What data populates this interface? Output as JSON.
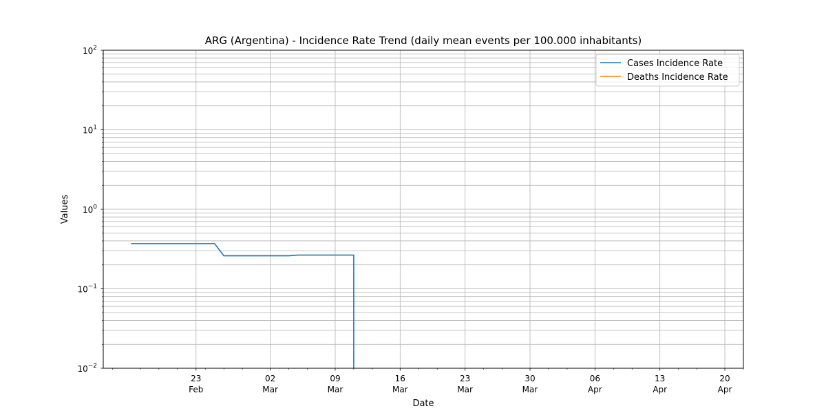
{
  "chart_data": {
    "type": "line",
    "title": "ARG (Argentina) - Incidence Rate Trend (daily mean events per 100.000 inhabitants)",
    "xlabel": "Date",
    "ylabel": "Values",
    "yscale": "log",
    "ylim": [
      0.01,
      100
    ],
    "xlim": [
      "2020-02-13",
      "2020-04-22"
    ],
    "grid": "major and minor",
    "legend_position": "top-right",
    "x_ticks": [
      {
        "date": "2020-02-23",
        "day": "23",
        "month": "Feb"
      },
      {
        "date": "2020-03-02",
        "day": "02",
        "month": "Mar"
      },
      {
        "date": "2020-03-09",
        "day": "09",
        "month": "Mar"
      },
      {
        "date": "2020-03-16",
        "day": "16",
        "month": "Mar"
      },
      {
        "date": "2020-03-23",
        "day": "23",
        "month": "Mar"
      },
      {
        "date": "2020-03-30",
        "day": "30",
        "month": "Mar"
      },
      {
        "date": "2020-04-06",
        "day": "06",
        "month": "Apr"
      },
      {
        "date": "2020-04-13",
        "day": "13",
        "month": "Apr"
      },
      {
        "date": "2020-04-20",
        "day": "20",
        "month": "Apr"
      }
    ],
    "y_ticks": [
      {
        "value": 0.01,
        "base": "10",
        "exp": "−2"
      },
      {
        "value": 0.1,
        "base": "10",
        "exp": "−1"
      },
      {
        "value": 1,
        "base": "10",
        "exp": "0"
      },
      {
        "value": 10,
        "base": "10",
        "exp": "1"
      },
      {
        "value": 100,
        "base": "10",
        "exp": "2"
      }
    ],
    "series": [
      {
        "name": "Cases Incidence Rate",
        "color": "#1f77b4",
        "points": [
          {
            "x": "2020-02-16",
            "y": 0.37
          },
          {
            "x": "2020-02-22",
            "y": 0.37
          },
          {
            "x": "2020-02-25",
            "y": 0.37
          },
          {
            "x": "2020-02-26",
            "y": 0.26
          },
          {
            "x": "2020-03-01",
            "y": 0.26
          },
          {
            "x": "2020-03-04",
            "y": 0.26
          },
          {
            "x": "2020-03-05",
            "y": 0.265
          },
          {
            "x": "2020-03-11",
            "y": 0.265
          },
          {
            "x": "2020-03-11",
            "y": 0.01
          }
        ]
      },
      {
        "name": "Deaths Incidence Rate",
        "color": "#ff7f0e",
        "points": []
      }
    ]
  }
}
